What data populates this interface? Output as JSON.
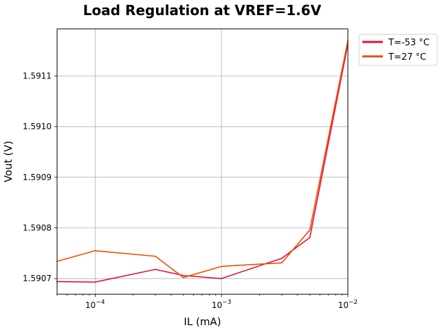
{
  "chart_data": {
    "type": "line",
    "title": "Load Regulation at VREF=1.6V",
    "xlabel": "IL (mA)",
    "ylabel": "Vout (V)",
    "xscale": "log",
    "xlim": [
      5e-05,
      0.01
    ],
    "ylim": [
      1.590669,
      1.591193
    ],
    "grid": true,
    "legend_position": "outside-top-right",
    "x_ticks": [
      {
        "value": 0.0001,
        "base": "10",
        "exp": "−4"
      },
      {
        "value": 0.001,
        "base": "10",
        "exp": "−3"
      },
      {
        "value": 0.01,
        "base": "10",
        "exp": "−2"
      }
    ],
    "y_ticks": [
      {
        "value": 1.5907,
        "label": "1.5907"
      },
      {
        "value": 1.5908,
        "label": "1.5908"
      },
      {
        "value": 1.5909,
        "label": "1.5909"
      },
      {
        "value": 1.591,
        "label": "1.5910"
      },
      {
        "value": 1.5911,
        "label": "1.5911"
      }
    ],
    "series": [
      {
        "name": "T=-53 °C",
        "color": "#e8102f",
        "x": [
          5e-05,
          0.0001,
          0.0003,
          0.0005,
          0.001,
          0.003,
          0.005,
          0.01
        ],
        "y": [
          1.590694,
          1.590693,
          1.590718,
          1.590706,
          1.5907,
          1.59074,
          1.590781,
          1.591163
        ]
      },
      {
        "name": "T=27 °C",
        "color": "#f24a00",
        "x": [
          5e-05,
          0.0001,
          0.0003,
          0.0005,
          0.001,
          0.003,
          0.005,
          0.01
        ],
        "y": [
          1.590734,
          1.590755,
          1.590744,
          1.590702,
          1.590724,
          1.590731,
          1.590796,
          1.59117
        ]
      }
    ]
  }
}
